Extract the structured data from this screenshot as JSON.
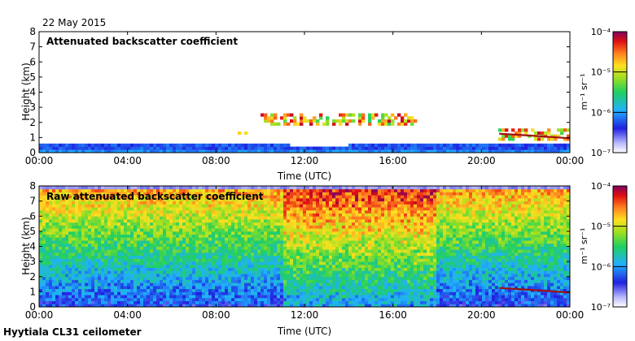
{
  "header": {
    "date": "22 May 2015",
    "footer": "Hyytiala CL31 ceilometer"
  },
  "chart_data": [
    {
      "type": "heatmap",
      "title": "Attenuated backscatter coefficient",
      "xlabel": "Time (UTC)",
      "ylabel": "Height (km)",
      "xticks": [
        "00:00",
        "04:00",
        "08:00",
        "12:00",
        "16:00",
        "20:00",
        "00:00"
      ],
      "xlim_hours": [
        0,
        24
      ],
      "yticks": [
        "0",
        "1",
        "2",
        "3",
        "4",
        "5",
        "6",
        "7",
        "8"
      ],
      "ylim_km": [
        0,
        8
      ],
      "grid": false,
      "colorbar": {
        "label": "m⁻¹ sr⁻¹",
        "ticks": [
          "10⁻⁴",
          "10⁻⁵",
          "10⁻⁶",
          "10⁻⁷"
        ],
        "scale": "log",
        "range": [
          1e-07,
          0.0001
        ]
      },
      "features": {
        "boundary_layer_top_km": [
          [
            0,
            0.55
          ],
          [
            4,
            0.6
          ],
          [
            8,
            0.6
          ],
          [
            10,
            0.6
          ],
          [
            12,
            0.45
          ],
          [
            14,
            0.5
          ],
          [
            16,
            0.55
          ],
          [
            18,
            0.6
          ],
          [
            20,
            0.65
          ],
          [
            24,
            0.65
          ]
        ],
        "clouds": [
          {
            "start_hour": 9.0,
            "end_hour": 9.4,
            "base_km": 1.2,
            "top_km": 1.4
          },
          {
            "start_hour": 10.0,
            "end_hour": 17.1,
            "base_km": 1.75,
            "top_km": 2.55
          },
          {
            "start_hour": 20.8,
            "end_hour": 24.0,
            "base_km": 0.9,
            "top_km": 1.5
          }
        ],
        "cloud_base_line": [
          [
            20.8,
            1.25
          ],
          [
            22.0,
            1.15
          ],
          [
            24.0,
            0.95
          ]
        ]
      }
    },
    {
      "type": "heatmap",
      "title": "Raw attenuated backscatter coefficient",
      "xlabel": "Time (UTC)",
      "ylabel": "Height (km)",
      "xticks": [
        "00:00",
        "04:00",
        "08:00",
        "12:00",
        "16:00",
        "20:00",
        "00:00"
      ],
      "xlim_hours": [
        0,
        24
      ],
      "yticks": [
        "0",
        "1",
        "2",
        "3",
        "4",
        "5",
        "6",
        "7",
        "8"
      ],
      "ylim_km": [
        0,
        8
      ],
      "grid": false,
      "colorbar": {
        "label": "m⁻¹ sr⁻¹",
        "ticks": [
          "10⁻⁴",
          "10⁻⁵",
          "10⁻⁶",
          "10⁻⁷"
        ],
        "scale": "log",
        "range": [
          1e-07,
          0.0001
        ]
      },
      "features": {
        "noisy_period_hours": [
          11.0,
          18.0
        ],
        "cloud_base_line": [
          [
            20.8,
            1.25
          ],
          [
            22.0,
            1.15
          ],
          [
            24.0,
            0.95
          ]
        ]
      }
    }
  ]
}
